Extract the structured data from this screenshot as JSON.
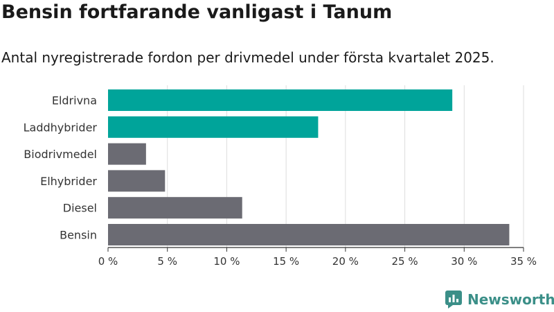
{
  "title": "Bensin fortfarande vanligast i Tanum",
  "subtitle": "Antal nyregistrerade fordon per drivmedel under första kvartalet 2025.",
  "brand": {
    "name": "Newsworthy",
    "color": "#3b8f88"
  },
  "colors": {
    "highlight": "#00a49a",
    "default": "#6b6b73",
    "grid": "#dddddd",
    "axis": "#333333"
  },
  "chart_data": {
    "type": "bar",
    "orientation": "horizontal",
    "categories": [
      "Eldrivna",
      "Laddhybrider",
      "Biodrivmedel",
      "Elhybrider",
      "Diesel",
      "Bensin"
    ],
    "values": [
      29.0,
      17.7,
      3.2,
      4.8,
      11.3,
      33.8
    ],
    "highlighted": [
      true,
      true,
      false,
      false,
      false,
      false
    ],
    "unit": "%",
    "xlim": [
      0,
      35
    ],
    "xticks": [
      0,
      5,
      10,
      15,
      20,
      25,
      30,
      35
    ],
    "xtick_labels": [
      "0 %",
      "5 %",
      "10 %",
      "15 %",
      "20 %",
      "25 %",
      "30 %",
      "35 %"
    ],
    "grid": true,
    "legend": "none"
  }
}
